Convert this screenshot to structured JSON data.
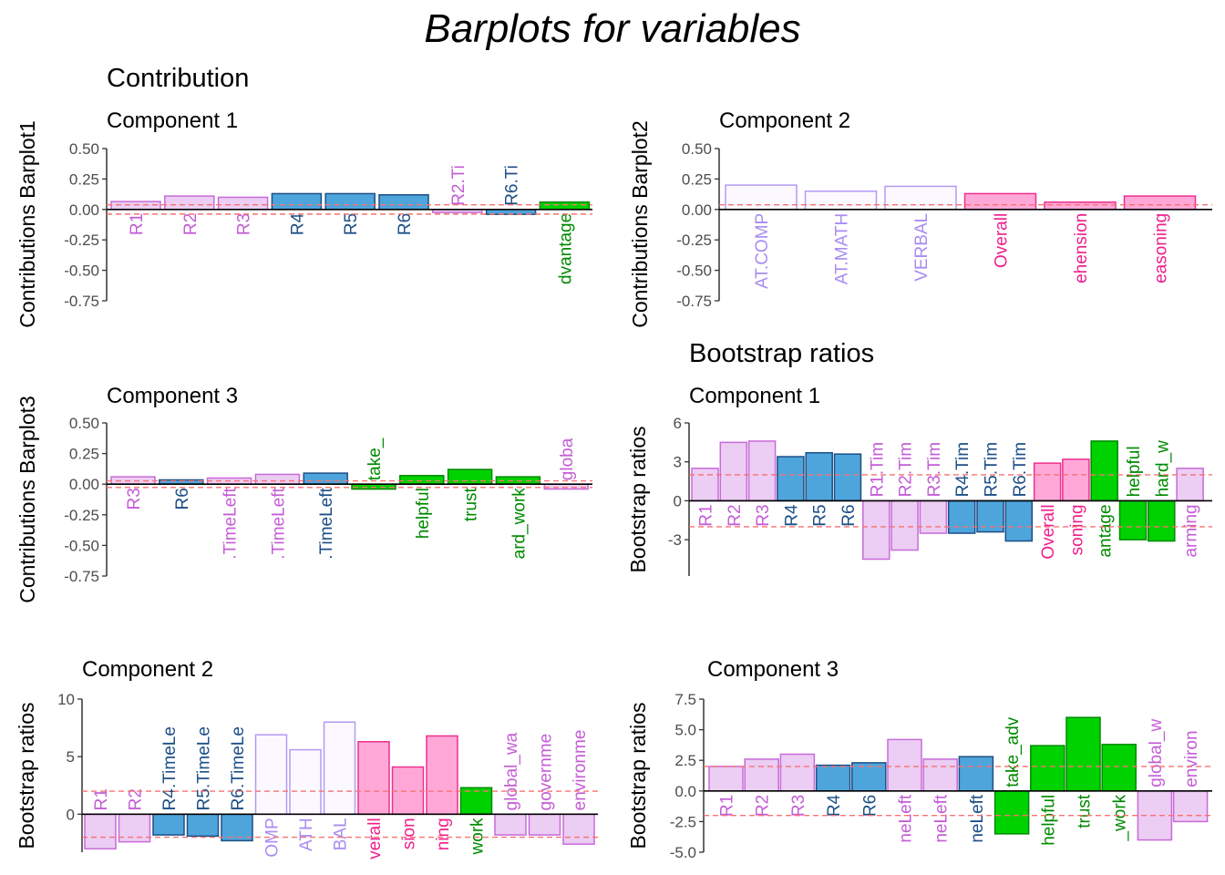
{
  "title": "Barplots for variables",
  "sections": {
    "contribution": "Contribution",
    "bootstrap": "Bootstrap ratios"
  },
  "chart_data": [
    {
      "type": "bar",
      "title": "Component 1",
      "ylabel": "Contributions Barplot1",
      "ylim": [
        -0.75,
        0.5
      ],
      "yticks": [
        "0.50",
        "0.25",
        "0.00",
        "-0.25",
        "-0.50",
        "-0.75"
      ],
      "ytick_values": [
        0.5,
        0.25,
        0,
        -0.25,
        -0.5,
        -0.75
      ],
      "threshold": [
        0.038,
        -0.038
      ],
      "categories": [
        "R1",
        "R2",
        "R3",
        "R4",
        "R5",
        "R6",
        "R2.Ti",
        "R6.Ti",
        "dvantage"
      ],
      "values": [
        0.065,
        0.11,
        0.1,
        0.13,
        0.13,
        0.12,
        -0.025,
        -0.04,
        0.06
      ],
      "groups": [
        "pink",
        "pink",
        "pink",
        "blue",
        "blue",
        "blue",
        "pink",
        "blue",
        "green"
      ]
    },
    {
      "type": "bar",
      "title": "Component 2",
      "ylabel": "Contributions Barplot2",
      "ylim": [
        -0.75,
        0.5
      ],
      "yticks": [
        "0.50",
        "0.25",
        "0.00",
        "-0.25",
        "-0.50",
        "-0.75"
      ],
      "ytick_values": [
        0.5,
        0.25,
        0,
        -0.25,
        -0.5,
        -0.75
      ],
      "threshold": [
        0.038
      ],
      "categories": [
        "AT.COMP",
        "AT.MATH",
        "VERBAL",
        "Overall",
        "ehension",
        "easoning"
      ],
      "values": [
        0.2,
        0.15,
        0.19,
        0.13,
        0.06,
        0.11
      ],
      "groups": [
        "lav",
        "lav",
        "lav",
        "mag",
        "mag",
        "mag"
      ]
    },
    {
      "type": "bar",
      "title": "Component 3",
      "ylabel": "Contributions Barplot3",
      "ylim": [
        -0.75,
        0.5
      ],
      "yticks": [
        "0.50",
        "0.25",
        "0.00",
        "-0.25",
        "-0.50",
        "-0.75"
      ],
      "ytick_values": [
        0.5,
        0.25,
        0,
        -0.25,
        -0.5,
        -0.75
      ],
      "threshold": [
        0.027,
        -0.027
      ],
      "categories": [
        "R3",
        "R6",
        ".TimeLeft",
        ".TimeLeft",
        ".TimeLeft",
        "take_",
        "helpful",
        "trust",
        "ard_work",
        "globa"
      ],
      "values": [
        0.06,
        0.035,
        0.05,
        0.08,
        0.09,
        -0.04,
        0.07,
        0.12,
        0.06,
        -0.04
      ],
      "groups": [
        "pink",
        "blue",
        "pink",
        "pink",
        "blue",
        "green",
        "green",
        "green",
        "green",
        "pink"
      ]
    },
    {
      "type": "bar",
      "title": "Component 1",
      "ylabel": "Bootstrap ratios",
      "ylim": [
        -5.8,
        6
      ],
      "yticks": [
        "6",
        "3",
        "0",
        "-3"
      ],
      "ytick_values": [
        6,
        3,
        0,
        -3
      ],
      "threshold": [
        2,
        -2
      ],
      "categories": [
        "R1",
        "R2",
        "R3",
        "R4",
        "R5",
        "R6",
        "R1.Tim",
        "R2.Tim",
        "R3.Tim",
        "R4.Tim",
        "R5.Tim",
        "R6.Tim",
        "Overall",
        "soning",
        "antage",
        "helpful",
        "hard_w",
        "arming"
      ],
      "values": [
        2.5,
        4.5,
        4.6,
        3.4,
        3.7,
        3.6,
        -4.5,
        -3.8,
        -2.5,
        -2.5,
        -2.4,
        -3.1,
        2.9,
        3.2,
        4.6,
        -3.0,
        -3.1,
        2.5
      ],
      "groups": [
        "pink",
        "pink",
        "pink",
        "blue",
        "blue",
        "blue",
        "pink",
        "pink",
        "pink",
        "blue",
        "blue",
        "blue",
        "mag",
        "mag",
        "green",
        "green",
        "green",
        "pink"
      ]
    },
    {
      "type": "bar",
      "title": "Component 2",
      "ylabel": "Bootstrap ratios",
      "ylim": [
        -3.3,
        10
      ],
      "yticks": [
        "10",
        "5",
        "0"
      ],
      "ytick_values": [
        10,
        5,
        0
      ],
      "threshold": [
        2,
        -2
      ],
      "categories": [
        "R1",
        "R2",
        "R4.TimeLe",
        "R5.TimeLe",
        "R6.TimeLe",
        "OMP",
        "ATH",
        "BAL",
        "verall",
        "sion",
        "ning",
        "work",
        "global_wa",
        "governme",
        "environme"
      ],
      "values": [
        -3.0,
        -2.4,
        -1.8,
        -1.9,
        -2.3,
        6.9,
        5.6,
        8.0,
        6.3,
        4.1,
        6.8,
        2.3,
        -1.8,
        -1.8,
        -2.6
      ],
      "groups": [
        "pink",
        "pink",
        "blue",
        "blue",
        "blue",
        "lav",
        "lav",
        "lav",
        "mag",
        "mag",
        "mag",
        "green",
        "pink",
        "pink",
        "pink"
      ]
    },
    {
      "type": "bar",
      "title": "Component 3",
      "ylabel": "Bootstrap ratios",
      "ylim": [
        -5,
        7.5
      ],
      "yticks": [
        "7.5",
        "5.0",
        "2.5",
        "0.0",
        "-2.5",
        "-5.0"
      ],
      "ytick_values": [
        7.5,
        5,
        2.5,
        0,
        -2.5,
        -5
      ],
      "threshold": [
        2,
        -2
      ],
      "categories": [
        "R1",
        "R2",
        "R3",
        "R4",
        "R6",
        "neLeft",
        "neLeft",
        "neLeft",
        "take_adv",
        "helpful",
        "trust",
        "_work",
        "global_w",
        "environ"
      ],
      "values": [
        2.0,
        2.6,
        3.0,
        2.1,
        2.3,
        4.2,
        2.6,
        2.8,
        -3.5,
        3.7,
        6.0,
        3.8,
        -4.0,
        -2.5
      ],
      "groups": [
        "pink",
        "pink",
        "pink",
        "blue",
        "blue",
        "pink",
        "pink",
        "blue",
        "green",
        "green",
        "green",
        "green",
        "pink",
        "pink"
      ]
    }
  ]
}
